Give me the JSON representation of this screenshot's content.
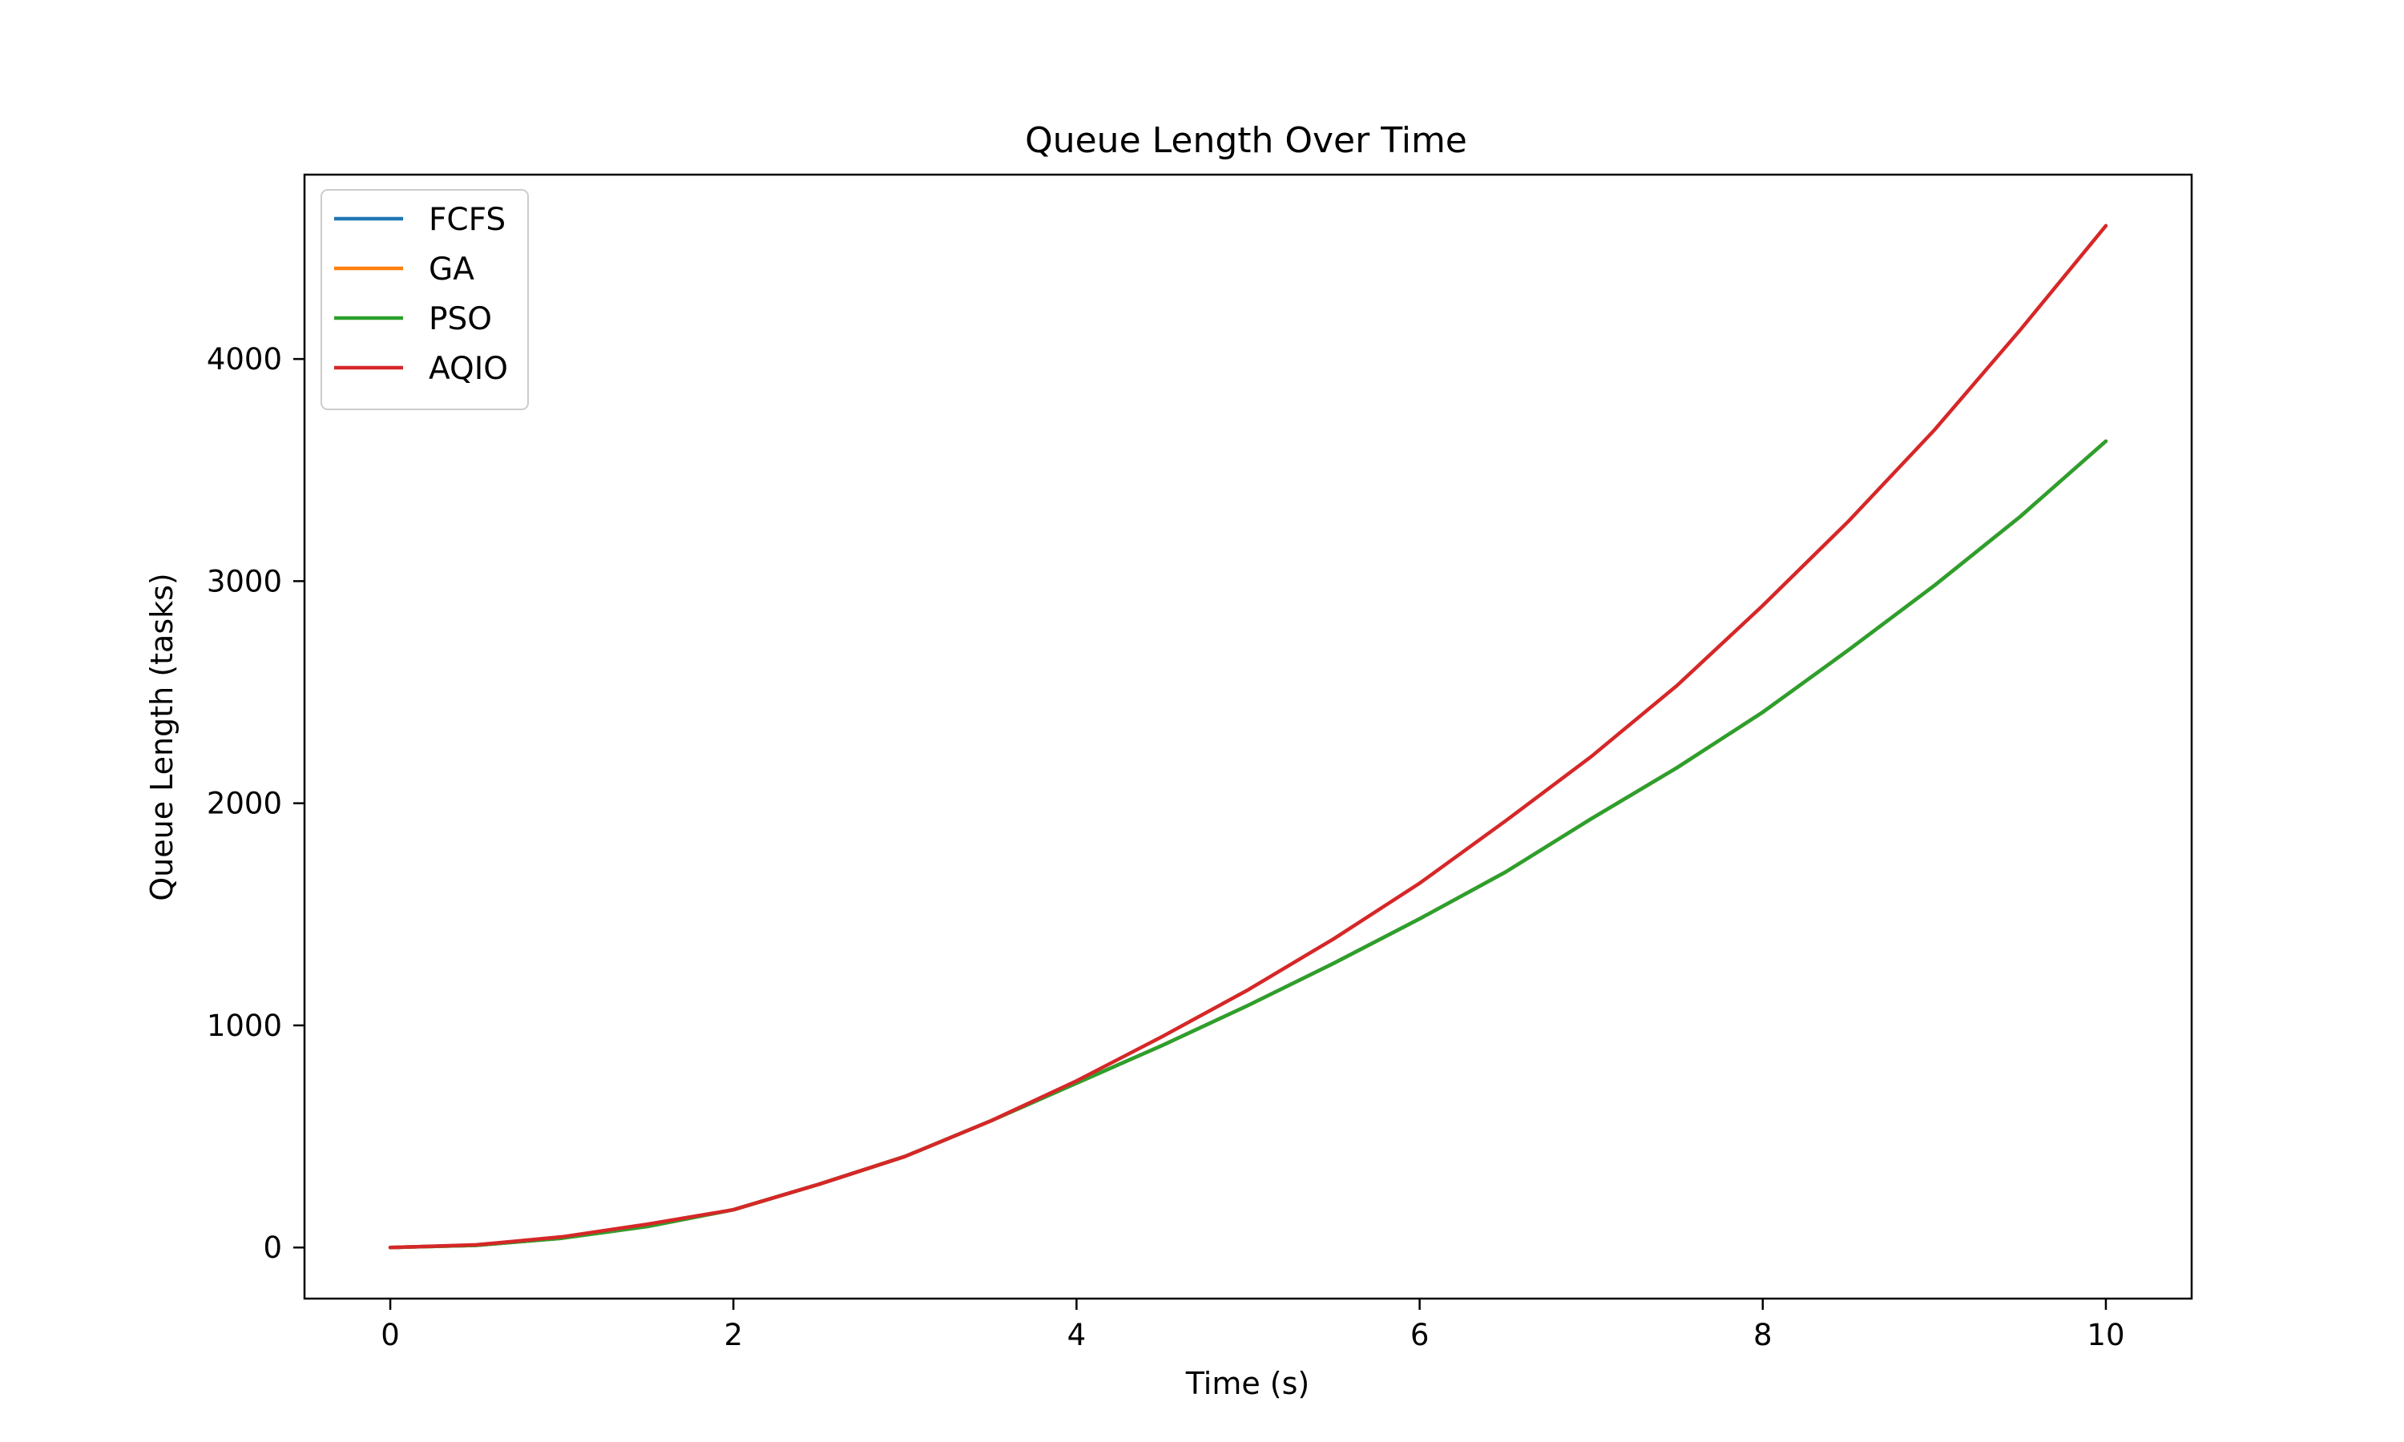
{
  "chart_data": {
    "type": "line",
    "title": "Queue Length Over Time",
    "xlabel": "Time (s)",
    "ylabel": "Queue Length (tasks)",
    "xlim": [
      -0.5,
      10.5
    ],
    "ylim": [
      -230,
      4830
    ],
    "xticks": [
      0,
      2,
      4,
      6,
      8,
      10
    ],
    "yticks": [
      0,
      1000,
      2000,
      3000,
      4000
    ],
    "grid": false,
    "legend_position": "top-left",
    "x": [
      0,
      0.5,
      1,
      1.5,
      2,
      2.5,
      3,
      3.5,
      4,
      4.5,
      5,
      5.5,
      6,
      6.5,
      7,
      7.5,
      8,
      8.5,
      9,
      9.5,
      10
    ],
    "series": [
      {
        "name": "FCFS",
        "color": "#1f77b4",
        "values": [
          0,
          10,
          42,
          95,
          170,
          285,
          410,
          570,
          740,
          910,
          1090,
          1280,
          1480,
          1690,
          1930,
          2160,
          2410,
          2690,
          2980,
          3290,
          3630
        ]
      },
      {
        "name": "GA",
        "color": "#ff7f0e",
        "values": [
          0,
          10,
          42,
          95,
          170,
          285,
          410,
          570,
          740,
          910,
          1090,
          1280,
          1480,
          1690,
          1930,
          2160,
          2410,
          2690,
          2980,
          3290,
          3630
        ]
      },
      {
        "name": "PSO",
        "color": "#2ca02c",
        "values": [
          0,
          10,
          42,
          95,
          170,
          285,
          410,
          570,
          740,
          910,
          1090,
          1280,
          1480,
          1690,
          1930,
          2160,
          2410,
          2690,
          2980,
          3290,
          3630
        ]
      },
      {
        "name": "AQIO",
        "color": "#d62728",
        "values": [
          0,
          12,
          48,
          105,
          170,
          285,
          410,
          570,
          750,
          950,
          1160,
          1390,
          1640,
          1920,
          2210,
          2530,
          2890,
          3270,
          3680,
          4130,
          4600
        ]
      }
    ]
  }
}
